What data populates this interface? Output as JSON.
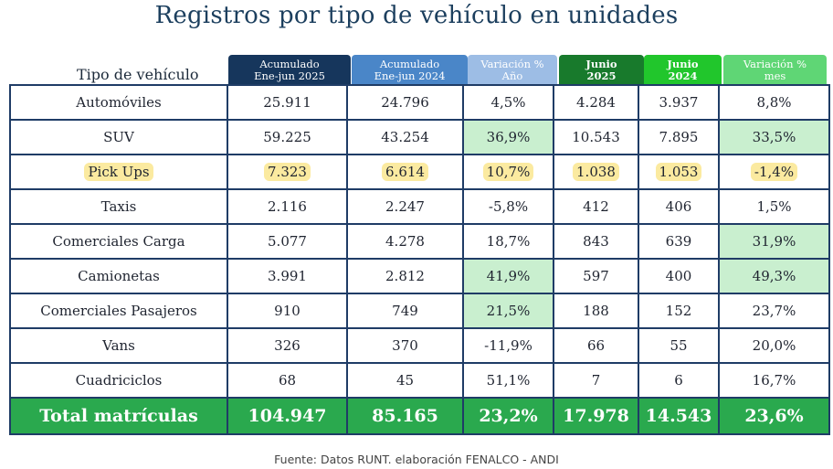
{
  "title": "Registros por tipo de vehículo en unidades",
  "row_header": "Tipo de vehículo",
  "columns": [
    {
      "line1": "Acumulado",
      "line2": "Ene-jun 2025",
      "color": "#16365c",
      "bold": false
    },
    {
      "line1": "Acumulado",
      "line2": "Ene-jun 2024",
      "color": "#4a86c8",
      "bold": false
    },
    {
      "line1": "Variación %",
      "line2": "Año",
      "color": "#9dbde5",
      "bold": false
    },
    {
      "line1": "Junio",
      "line2": "2025",
      "color": "#187a2c",
      "bold": true
    },
    {
      "line1": "Junio",
      "line2": "2024",
      "color": "#21c62c",
      "bold": true
    },
    {
      "line1": "Variación %",
      "line2": "mes",
      "color": "#5fd675",
      "bold": false
    }
  ],
  "colors": {
    "highlight_green": "#c9efcf",
    "highlight_yellow": "#fbeaa0",
    "total_bg": "#2aa94e",
    "grid": "#1f3c66"
  },
  "chart_data": {
    "type": "table",
    "title": "Registros por tipo de vehículo en unidades",
    "rows": [
      {
        "label": "Automóviles",
        "values": [
          "25.911",
          "24.796",
          "4,5%",
          "4.284",
          "3.937",
          "8,8%"
        ],
        "green": [],
        "yellow": false
      },
      {
        "label": "SUV",
        "values": [
          "59.225",
          "43.254",
          "36,9%",
          "10.543",
          "7.895",
          "33,5%"
        ],
        "green": [
          2,
          5
        ],
        "yellow": false
      },
      {
        "label": "Pick Ups",
        "values": [
          "7.323",
          "6.614",
          "10,7%",
          "1.038",
          "1.053",
          "-1,4%"
        ],
        "green": [],
        "yellow": true
      },
      {
        "label": "Taxis",
        "values": [
          "2.116",
          "2.247",
          "-5,8%",
          "412",
          "406",
          "1,5%"
        ],
        "green": [],
        "yellow": false
      },
      {
        "label": "Comerciales Carga",
        "values": [
          "5.077",
          "4.278",
          "18,7%",
          "843",
          "639",
          "31,9%"
        ],
        "green": [
          5
        ],
        "yellow": false
      },
      {
        "label": "Camionetas",
        "values": [
          "3.991",
          "2.812",
          "41,9%",
          "597",
          "400",
          "49,3%"
        ],
        "green": [
          2,
          5
        ],
        "yellow": false
      },
      {
        "label": "Comerciales Pasajeros",
        "values": [
          "910",
          "749",
          "21,5%",
          "188",
          "152",
          "23,7%"
        ],
        "green": [
          2
        ],
        "yellow": false
      },
      {
        "label": "Vans",
        "values": [
          "326",
          "370",
          "-11,9%",
          "66",
          "55",
          "20,0%"
        ],
        "green": [],
        "yellow": false
      },
      {
        "label": "Cuadriciclos",
        "values": [
          "68",
          "45",
          "51,1%",
          "7",
          "6",
          "16,7%"
        ],
        "green": [],
        "yellow": false
      }
    ],
    "total": {
      "label": "Total matrículas",
      "values": [
        "104.947",
        "85.165",
        "23,2%",
        "17.978",
        "14.543",
        "23,6%"
      ]
    }
  },
  "source": "Fuente: Datos RUNT. elaboración FENALCO - ANDI"
}
